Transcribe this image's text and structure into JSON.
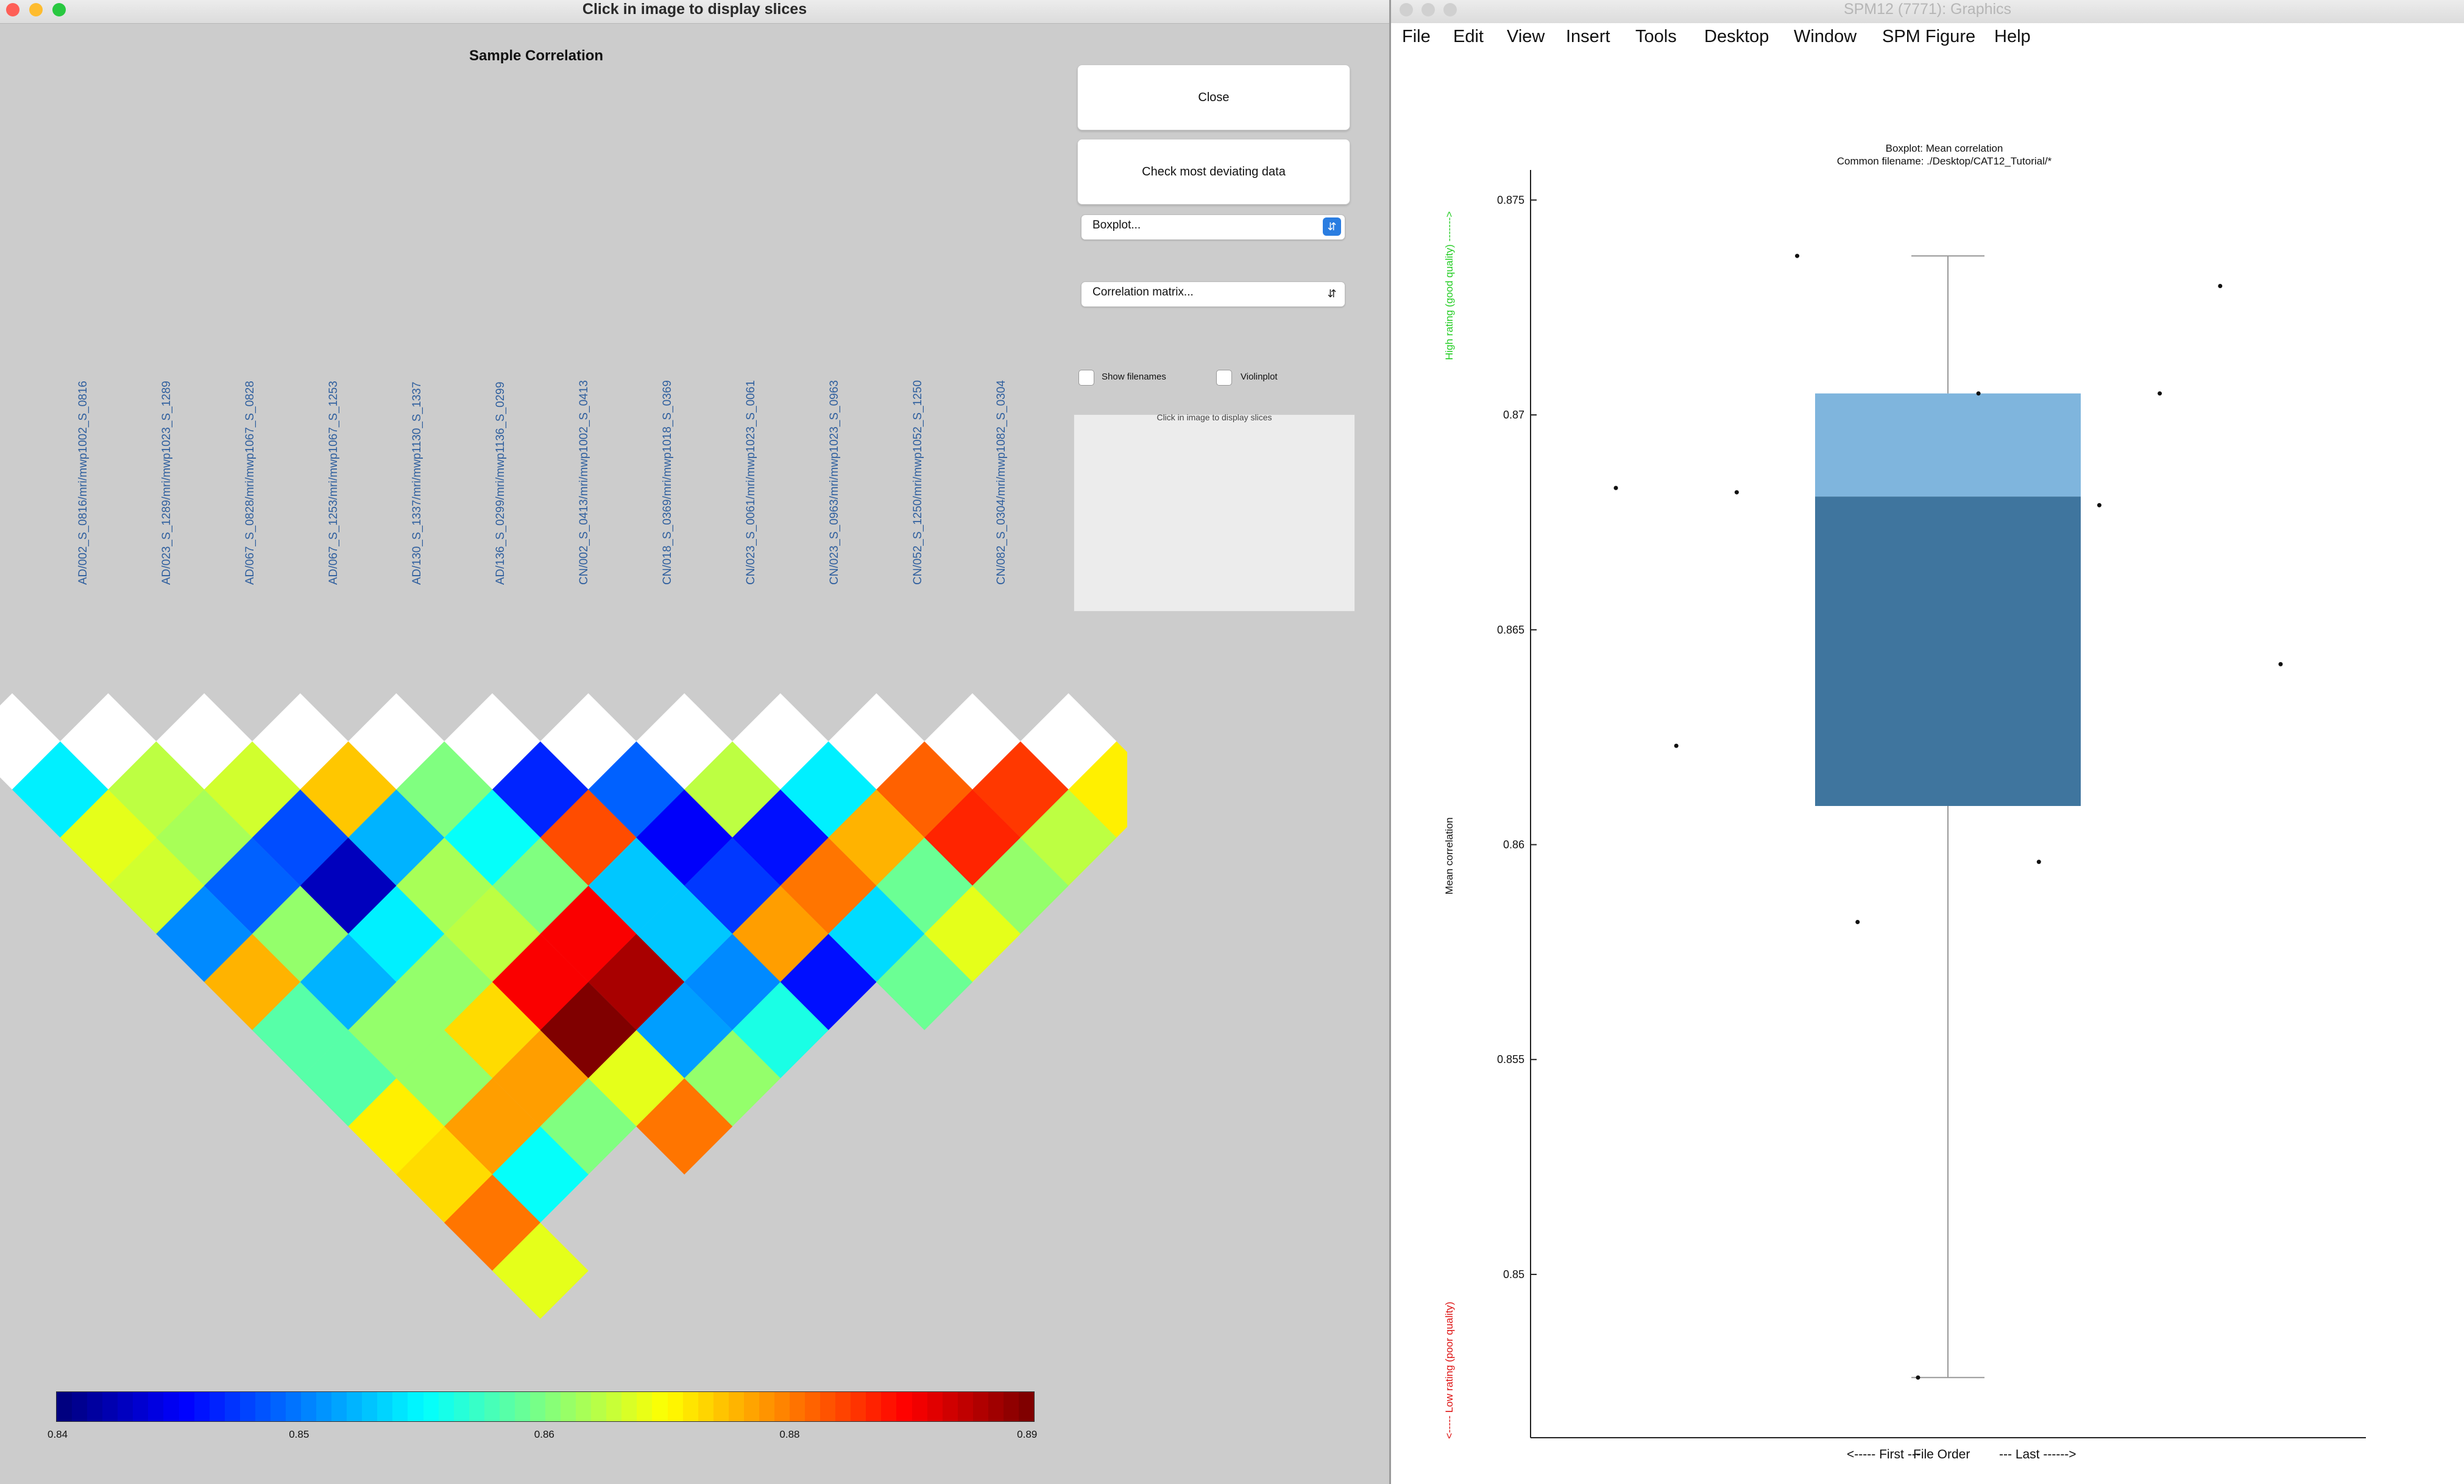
{
  "left_window": {
    "title": "Click in image to display slices",
    "panel_title": "Sample Correlation",
    "buttons": {
      "close": "Close",
      "check": "Check most deviating data"
    },
    "dropdowns": {
      "plot_type": "Boxplot...",
      "view_type": "Correlation matrix..."
    },
    "checkboxes": {
      "show_filenames": "Show filenames",
      "violinplot": "Violinplot"
    },
    "preview_hint": "Click in image to display slices",
    "filenames": [
      "AD/002_S_0816/mri/mwp1002_S_0816",
      "AD/023_S_1289/mri/mwp1023_S_1289",
      "AD/067_S_0828/mri/mwp1067_S_0828",
      "AD/067_S_1253/mri/mwp1067_S_1253",
      "AD/130_S_1337/mri/mwp1130_S_1337",
      "AD/136_S_0299/mri/mwp1136_S_0299",
      "CN/002_S_0413/mri/mwp1002_S_0413",
      "CN/018_S_0369/mri/mwp1018_S_0369",
      "CN/023_S_0061/mri/mwp1023_S_0061",
      "CN/023_S_0963/mri/mwp1023_S_0963",
      "CN/052_S_1250/mri/mwp1052_S_1250",
      "CN/082_S_0304/mri/mwp1082_S_0304"
    ],
    "colorbar_ticks": [
      "0.84",
      "0.85",
      "0.86",
      "0.88",
      "0.89"
    ],
    "matrix_values": [
      [
        0.858,
        0.868,
        0.869,
        0.874,
        0.865,
        0.848,
        0.851,
        0.868,
        0.858,
        0.879,
        0.881,
        0.872
      ],
      [
        0.87,
        0.867,
        0.85,
        0.855,
        0.859,
        0.88,
        0.846,
        0.847,
        0.875,
        0.882,
        0.868
      ],
      [
        0.869,
        0.851,
        0.843,
        0.867,
        0.865,
        0.856,
        0.849,
        0.878,
        0.864,
        0.866
      ],
      [
        0.853,
        0.866,
        0.858,
        0.868,
        0.884,
        0.856,
        0.876,
        0.857,
        0.87
      ],
      [
        0.875,
        0.855,
        0.866,
        0.884,
        0.888,
        0.853,
        0.847,
        0.864
      ],
      [
        0.863,
        0.866,
        0.873,
        0.891,
        0.854,
        0.86
      ],
      [
        0.863,
        0.866,
        0.876,
        0.87,
        0.866
      ],
      [
        0.872,
        0.876,
        0.865,
        0.878
      ],
      [
        0.873,
        0.859
      ],
      [
        0.878
      ],
      [
        0.87
      ]
    ]
  },
  "right_window": {
    "title": "SPM12 (7771): Graphics",
    "menu": [
      "File",
      "Edit",
      "View",
      "Insert",
      "Tools",
      "Desktop",
      "Window",
      "SPM Figure",
      "Help"
    ]
  },
  "colors": {
    "box_upper": "#7fb5dd",
    "box_lower": "#3f759e",
    "good_label": "#22cc22",
    "bad_label": "#dd1111",
    "filename_text": "#2f5f9e"
  },
  "chart_data": {
    "type": "boxplot",
    "title": "Boxplot: Mean correlation",
    "subtitle": "Common filename: ./Desktop/CAT12_Tutorial/*",
    "ylabel": "Mean correlation",
    "xlabel": [
      "<----- First ---",
      "File Order",
      "--- Last ------>"
    ],
    "ylim": [
      0.8462,
      0.8757
    ],
    "yticks": [
      0.85,
      0.855,
      0.86,
      0.865,
      0.87,
      0.875
    ],
    "ytick_labels": [
      "0.85",
      "0.855",
      "0.86",
      "0.865",
      "0.87",
      "0.875"
    ],
    "quality_labels": {
      "good": "High rating (good quality) ------->",
      "poor": "<----- Low rating (poor quality)"
    },
    "box": {
      "min": 0.8476,
      "q1": 0.8609,
      "median": 0.8681,
      "q3": 0.8705,
      "max": 0.8737
    },
    "points": [
      0.8683,
      0.8623,
      0.8682,
      0.8737,
      0.8582,
      0.8476,
      0.8705,
      0.8596,
      0.8679,
      0.8705,
      0.873,
      0.8642
    ]
  }
}
